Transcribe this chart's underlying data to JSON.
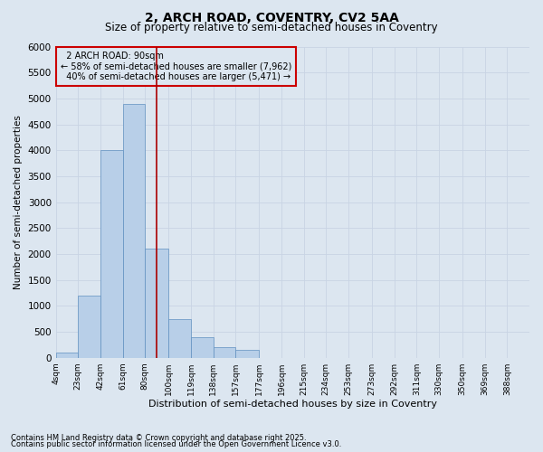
{
  "title1": "2, ARCH ROAD, COVENTRY, CV2 5AA",
  "title2": "Size of property relative to semi-detached houses in Coventry",
  "xlabel": "Distribution of semi-detached houses by size in Coventry",
  "ylabel": "Number of semi-detached properties",
  "property_label": "2 ARCH ROAD: 90sqm",
  "pct_smaller": 58,
  "pct_larger": 40,
  "n_smaller": 7962,
  "n_larger": 5471,
  "bin_labels": [
    "4sqm",
    "23sqm",
    "42sqm",
    "61sqm",
    "80sqm",
    "100sqm",
    "119sqm",
    "138sqm",
    "157sqm",
    "177sqm",
    "196sqm",
    "215sqm",
    "234sqm",
    "253sqm",
    "273sqm",
    "292sqm",
    "311sqm",
    "330sqm",
    "350sqm",
    "369sqm",
    "388sqm"
  ],
  "bin_edges": [
    4,
    23,
    42,
    61,
    80,
    100,
    119,
    138,
    157,
    177,
    196,
    215,
    234,
    253,
    273,
    292,
    311,
    330,
    350,
    369,
    388,
    407
  ],
  "bar_heights": [
    100,
    1200,
    4000,
    4900,
    2100,
    750,
    400,
    200,
    150,
    0,
    0,
    0,
    0,
    0,
    0,
    0,
    0,
    0,
    0,
    0,
    0
  ],
  "bar_color": "#b8cfe8",
  "bar_edge_color": "#6090c0",
  "grid_color": "#c8d4e4",
  "background_color": "#dce6f0",
  "vline_color": "#aa0000",
  "vline_x": 90,
  "box_color": "#cc0000",
  "ylim": [
    0,
    6000
  ],
  "yticks": [
    0,
    500,
    1000,
    1500,
    2000,
    2500,
    3000,
    3500,
    4000,
    4500,
    5000,
    5500,
    6000
  ],
  "footnote1": "Contains HM Land Registry data © Crown copyright and database right 2025.",
  "footnote2": "Contains public sector information licensed under the Open Government Licence v3.0."
}
